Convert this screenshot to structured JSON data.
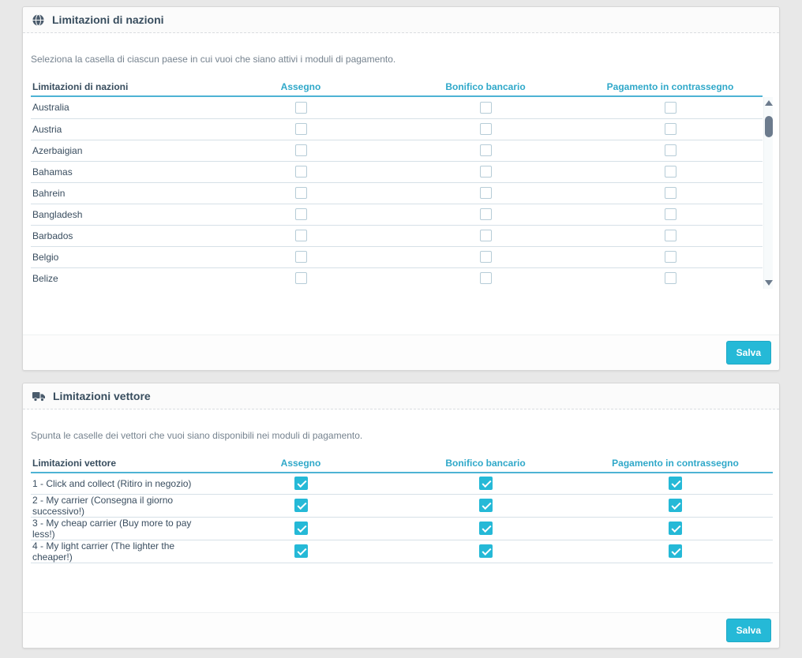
{
  "colors": {
    "accent": "#25b9d7",
    "panel_title": "#384d5e",
    "column_header_link": "#2fa8c9",
    "page_background": "#e8e8e8"
  },
  "panels": [
    {
      "icon": "globe-icon",
      "title": "Limitazioni di nazioni",
      "description": "Seleziona la casella di ciascun paese in cui vuoi che siano attivi i moduli di pagamento.",
      "table": {
        "label_header": "Limitazioni di nazioni",
        "column_headers": [
          "Assegno",
          "Bonifico bancario",
          "Pagamento in contrassegno"
        ],
        "rows": [
          {
            "label": "Australia",
            "checks": [
              false,
              false,
              false
            ]
          },
          {
            "label": "Austria",
            "checks": [
              false,
              false,
              false
            ]
          },
          {
            "label": "Azerbaigian",
            "checks": [
              false,
              false,
              false
            ]
          },
          {
            "label": "Bahamas",
            "checks": [
              false,
              false,
              false
            ]
          },
          {
            "label": "Bahrein",
            "checks": [
              false,
              false,
              false
            ]
          },
          {
            "label": "Bangladesh",
            "checks": [
              false,
              false,
              false
            ]
          },
          {
            "label": "Barbados",
            "checks": [
              false,
              false,
              false
            ]
          },
          {
            "label": "Belgio",
            "checks": [
              false,
              false,
              false
            ]
          },
          {
            "label": "Belize",
            "checks": [
              false,
              false,
              false
            ]
          }
        ]
      },
      "save_label": "Salva"
    },
    {
      "icon": "truck-icon",
      "title": "Limitazioni vettore",
      "description": "Spunta le caselle dei vettori che vuoi siano disponibili nei moduli di pagamento.",
      "table": {
        "label_header": "Limitazioni vettore",
        "column_headers": [
          "Assegno",
          "Bonifico bancario",
          "Pagamento in contrassegno"
        ],
        "rows": [
          {
            "label": "1 - Click and collect (Ritiro in negozio)",
            "checks": [
              true,
              true,
              true
            ]
          },
          {
            "label": "2 - My carrier (Consegna il giorno successivo!)",
            "checks": [
              true,
              true,
              true
            ]
          },
          {
            "label": "3 - My cheap carrier (Buy more to pay less!)",
            "checks": [
              true,
              true,
              true
            ]
          },
          {
            "label": "4 - My light carrier (The lighter the cheaper!)",
            "checks": [
              true,
              true,
              true
            ]
          }
        ]
      },
      "save_label": "Salva"
    }
  ]
}
